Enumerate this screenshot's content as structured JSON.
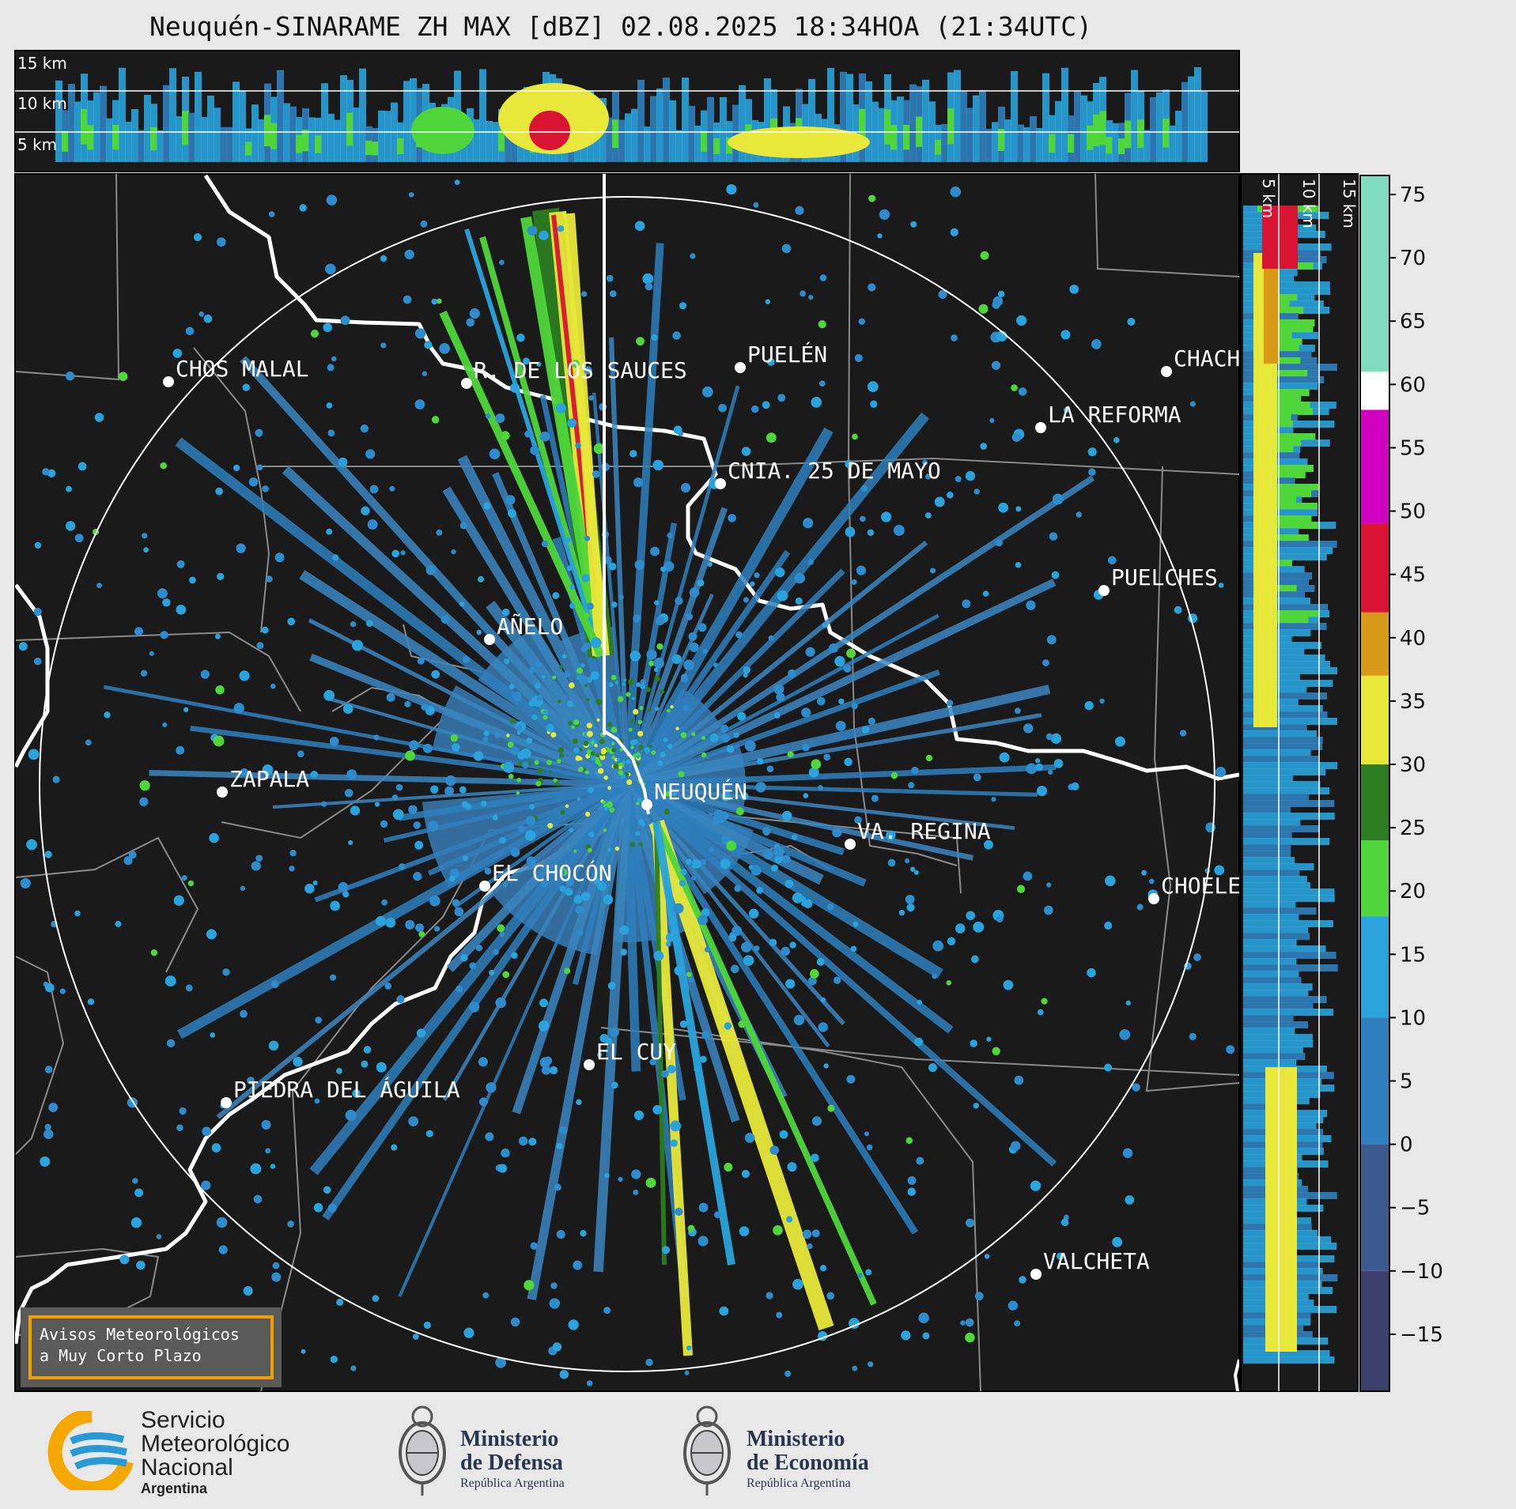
{
  "title": "Neuquén-SINARAME ZH MAX [dBZ] 02.08.2025 18:34HOA (21:34UTC)",
  "top_section": {
    "km_labels": [
      "15 km",
      "10 km",
      "5 km"
    ]
  },
  "side_section": {
    "km_labels": [
      "5 km",
      "10 km",
      "15 km"
    ]
  },
  "colorbar": {
    "ticks": [
      "75",
      "70",
      "65",
      "60",
      "55",
      "50",
      "45",
      "40",
      "35",
      "30",
      "25",
      "20",
      "15",
      "10",
      "5",
      "0",
      "−5",
      "−10",
      "−15"
    ],
    "range": [
      -19.5,
      76.5
    ],
    "bands": [
      {
        "from": -19.5,
        "to": -10,
        "color": "#3a3f6c"
      },
      {
        "from": -10,
        "to": 0,
        "color": "#3d5a8e"
      },
      {
        "from": 0,
        "to": 10,
        "color": "#2f7fbe"
      },
      {
        "from": 10,
        "to": 18,
        "color": "#2aa3dc"
      },
      {
        "from": 18,
        "to": 24,
        "color": "#4fd63a"
      },
      {
        "from": 24,
        "to": 30,
        "color": "#2c7d20"
      },
      {
        "from": 30,
        "to": 37,
        "color": "#e8e83a"
      },
      {
        "from": 37,
        "to": 42,
        "color": "#d99a1a"
      },
      {
        "from": 42,
        "to": 49,
        "color": "#d81432"
      },
      {
        "from": 49,
        "to": 58,
        "color": "#d000c0"
      },
      {
        "from": 58,
        "to": 61,
        "color": "#ffffff"
      },
      {
        "from": 61,
        "to": 76.5,
        "color": "#7fdcbe"
      }
    ]
  },
  "cities": [
    {
      "name": "CHOS MALAL"
    },
    {
      "name": "R. DE LOS SAUCES"
    },
    {
      "name": "PUELÉN"
    },
    {
      "name": "CHACH"
    },
    {
      "name": "LA REFORMA"
    },
    {
      "name": "CNIA. 25 DE MAYO"
    },
    {
      "name": "PUELCHES"
    },
    {
      "name": "AÑELO"
    },
    {
      "name": "ZAPALA"
    },
    {
      "name": "NEUQUÉN"
    },
    {
      "name": "VA. REGINA"
    },
    {
      "name": "EL CHOCÓN"
    },
    {
      "name": "CHOELE"
    },
    {
      "name": "EL CUY"
    },
    {
      "name": "PIEDRA DEL ÁGUILA"
    },
    {
      "name": "VALCHETA"
    }
  ],
  "avisos": {
    "line1": "Avisos Meteorológicos",
    "line2": "a Muy Corto Plazo"
  },
  "logos": {
    "smn": {
      "line1": "Servicio",
      "line2": "Meteorológico",
      "line3": "Nacional",
      "line4": "Argentina"
    },
    "defensa": {
      "line1": "Ministerio",
      "line2": "de Defensa",
      "line3": "República Argentina"
    },
    "economia": {
      "line1": "Ministerio",
      "line2": "de Economía",
      "line3": "República Argentina"
    }
  }
}
